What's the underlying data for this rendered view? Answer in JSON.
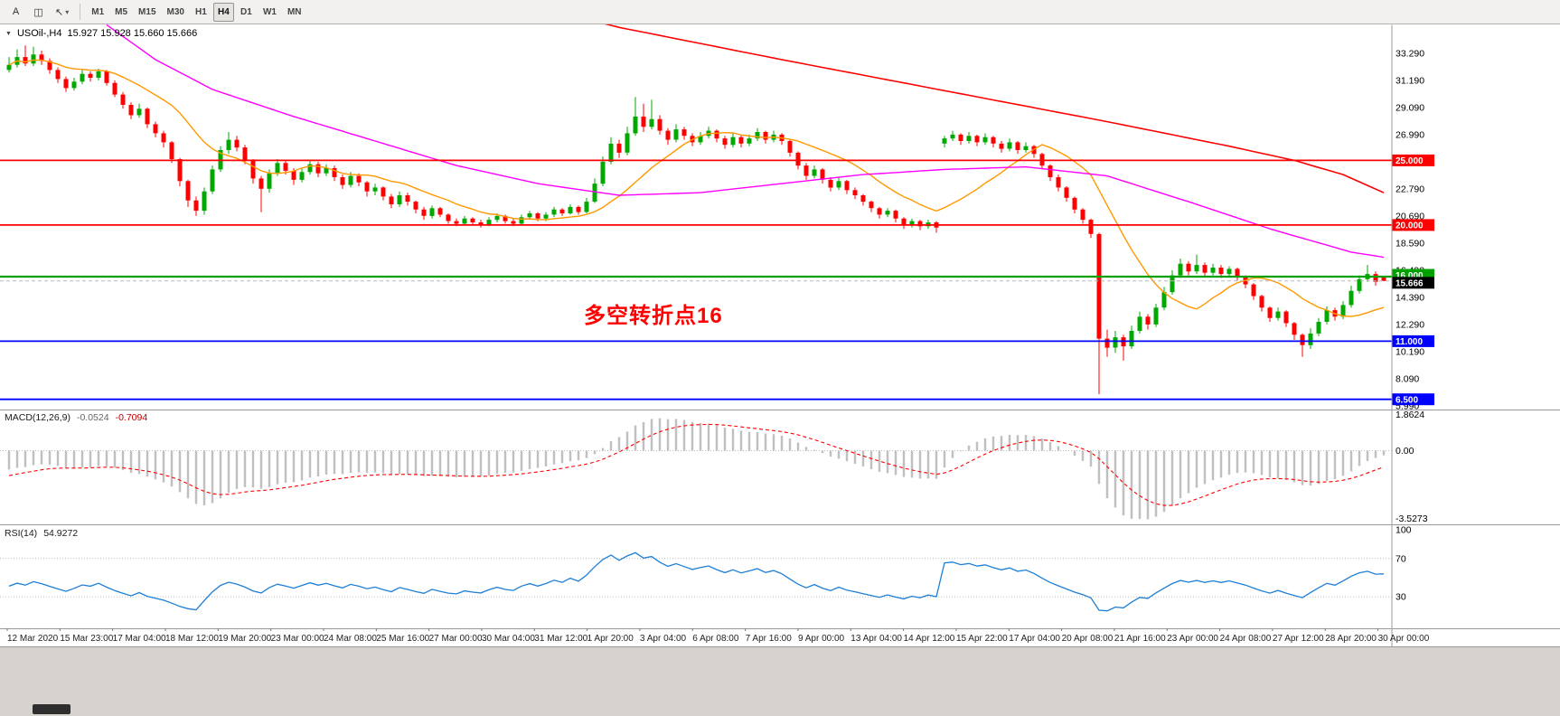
{
  "toolbar": {
    "buttons": [
      {
        "name": "annotations-button",
        "label": "A"
      },
      {
        "name": "chart-window-button",
        "label": "◫"
      },
      {
        "name": "cursor-tool-button",
        "label": "↖",
        "dropdown": "▾"
      }
    ],
    "timeframes": [
      "M1",
      "M5",
      "M15",
      "M30",
      "H1",
      "H4",
      "D1",
      "W1",
      "MN"
    ],
    "active_timeframe": "H4"
  },
  "chart": {
    "symbol_title": "USOil-,H4",
    "ohlc_line": "15.927 15.928 15.660 15.666",
    "annotation": {
      "text": "多空转折点16",
      "color": "#FF0000"
    },
    "current_price": "15.666"
  },
  "price_axis": {
    "labels": [
      "33.290",
      "31.190",
      "29.090",
      "26.990",
      "22.790",
      "20.690",
      "18.590",
      "16.490",
      "14.390",
      "12.290",
      "10.190",
      "8.090",
      "5.990"
    ],
    "flags": [
      {
        "label": "25.000",
        "price": 25.0,
        "color": "#FF0000",
        "line": true,
        "width": 1.8
      },
      {
        "label": "20.000",
        "price": 20.0,
        "color": "#FF0000",
        "line": true,
        "width": 1.8
      },
      {
        "label": "16.000",
        "price": 16.0,
        "color": "#00A000",
        "line": true,
        "width": 2.2,
        "dy": -2
      },
      {
        "label": "15.666",
        "price": 15.666,
        "color": "#000000",
        "line": false,
        "dashed": true,
        "dy": 2
      },
      {
        "label": "11.000",
        "price": 11.0,
        "color": "#0000FF",
        "line": true,
        "width": 1.8
      },
      {
        "label": "6.500",
        "price": 6.5,
        "color": "#0000FF",
        "line": true,
        "width": 1.8
      }
    ]
  },
  "time_axis": {
    "labels": [
      "12 Mar 2020",
      "15 Mar 23:00",
      "17 Mar 04:00",
      "18 Mar 12:00",
      "19 Mar 20:00",
      "23 Mar 00:00",
      "24 Mar 08:00",
      "25 Mar 16:00",
      "27 Mar 00:00",
      "30 Mar 04:00",
      "31 Mar 12:00",
      "1 Apr 20:00",
      "3 Apr 04:00",
      "6 Apr 08:00",
      "7 Apr 16:00",
      "9 Apr 00:00",
      "13 Apr 04:00",
      "14 Apr 12:00",
      "15 Apr 22:00",
      "17 Apr 04:00",
      "20 Apr 08:00",
      "21 Apr 16:00",
      "23 Apr 00:00",
      "24 Apr 08:00",
      "27 Apr 12:00",
      "28 Apr 20:00",
      "30 Apr 00:00"
    ]
  },
  "indicators": {
    "macd": {
      "title": "MACD(12,26,9)",
      "value_main": "-0.0524",
      "value_signal": "-0.7094",
      "scale": [
        "1.8624",
        "0.00",
        "-3.5273"
      ],
      "fast": 12,
      "slow": 26,
      "signal": 9,
      "histogram_color": "#C0C0C0",
      "signal_color": "#FF0000"
    },
    "rsi": {
      "title": "RSI(14)",
      "value": "54.9272",
      "scale": [
        "100",
        "70",
        "30"
      ],
      "levels": [
        70,
        30
      ],
      "period": 14,
      "line_color": "#1E7FD6"
    }
  },
  "chart_data": {
    "type": "candlestick",
    "symbol": "USOil-",
    "timeframe": "H4",
    "title": "USOil-,H4 15.927 15.928 15.660 15.666",
    "y_range": [
      5.99,
      35.32
    ],
    "bull_color": "#00A800",
    "bear_color": "#FF0000",
    "horizontal_lines": [
      25.0,
      20.0,
      16.0,
      11.0,
      6.5
    ],
    "candles": [
      [
        32.0,
        33.0,
        31.8,
        32.4
      ],
      [
        32.4,
        33.6,
        32.2,
        33.0
      ],
      [
        33.0,
        33.9,
        32.3,
        32.5
      ],
      [
        32.5,
        33.8,
        32.3,
        33.2
      ],
      [
        33.2,
        33.5,
        32.4,
        32.7
      ],
      [
        32.7,
        32.9,
        31.7,
        32.0
      ],
      [
        32.0,
        32.2,
        31.0,
        31.3
      ],
      [
        31.3,
        31.5,
        30.3,
        30.6
      ],
      [
        30.6,
        31.4,
        30.4,
        31.1
      ],
      [
        31.1,
        32.0,
        30.9,
        31.7
      ],
      [
        31.7,
        31.9,
        31.1,
        31.4
      ],
      [
        31.4,
        32.1,
        31.2,
        31.9
      ],
      [
        31.9,
        32.0,
        30.8,
        31.0
      ],
      [
        31.0,
        31.2,
        29.9,
        30.1
      ],
      [
        30.1,
        30.3,
        29.0,
        29.3
      ],
      [
        29.3,
        29.5,
        28.2,
        28.5
      ],
      [
        28.5,
        29.4,
        28.3,
        29.0
      ],
      [
        29.0,
        29.1,
        27.5,
        27.8
      ],
      [
        27.8,
        28.0,
        26.8,
        27.1
      ],
      [
        27.1,
        27.3,
        26.0,
        26.4
      ],
      [
        26.4,
        26.5,
        24.8,
        25.1
      ],
      [
        25.1,
        25.2,
        23.0,
        23.4
      ],
      [
        23.4,
        23.5,
        21.4,
        21.9
      ],
      [
        21.9,
        22.2,
        20.7,
        21.1
      ],
      [
        21.1,
        22.9,
        20.8,
        22.6
      ],
      [
        22.6,
        24.6,
        22.4,
        24.3
      ],
      [
        24.3,
        26.1,
        24.1,
        25.8
      ],
      [
        25.8,
        27.2,
        25.5,
        26.6
      ],
      [
        26.6,
        26.9,
        25.7,
        26.0
      ],
      [
        26.0,
        26.2,
        24.7,
        25.0
      ],
      [
        25.0,
        25.1,
        23.2,
        23.6
      ],
      [
        23.6,
        23.8,
        21.0,
        22.8
      ],
      [
        22.8,
        24.3,
        22.5,
        24.0
      ],
      [
        24.0,
        25.1,
        23.8,
        24.8
      ],
      [
        24.8,
        25.0,
        23.9,
        24.2
      ],
      [
        24.2,
        24.4,
        23.1,
        23.5
      ],
      [
        23.5,
        24.4,
        23.3,
        24.1
      ],
      [
        24.1,
        25.0,
        23.9,
        24.7
      ],
      [
        24.7,
        24.9,
        23.7,
        24.0
      ],
      [
        24.0,
        24.7,
        23.8,
        24.4
      ],
      [
        24.4,
        24.6,
        23.4,
        23.7
      ],
      [
        23.7,
        23.9,
        22.8,
        23.1
      ],
      [
        23.1,
        24.1,
        22.9,
        23.8
      ],
      [
        23.8,
        24.0,
        23.0,
        23.3
      ],
      [
        23.3,
        23.4,
        22.2,
        22.6
      ],
      [
        22.6,
        23.2,
        22.3,
        22.9
      ],
      [
        22.9,
        23.0,
        21.9,
        22.2
      ],
      [
        22.2,
        22.4,
        21.3,
        21.6
      ],
      [
        21.6,
        22.6,
        21.4,
        22.3
      ],
      [
        22.3,
        22.5,
        21.5,
        21.8
      ],
      [
        21.8,
        21.9,
        20.9,
        21.2
      ],
      [
        21.2,
        21.4,
        20.4,
        20.7
      ],
      [
        20.7,
        21.5,
        20.5,
        21.3
      ],
      [
        21.3,
        21.4,
        20.6,
        20.8
      ],
      [
        20.8,
        20.9,
        20.1,
        20.3
      ],
      [
        20.3,
        20.5,
        19.9,
        20.1
      ],
      [
        20.1,
        20.7,
        20.0,
        20.5
      ],
      [
        20.5,
        20.6,
        20.0,
        20.2
      ],
      [
        20.2,
        20.4,
        19.8,
        20.0
      ],
      [
        20.0,
        20.6,
        19.9,
        20.4
      ],
      [
        20.4,
        20.9,
        20.2,
        20.7
      ],
      [
        20.7,
        20.8,
        20.1,
        20.3
      ],
      [
        20.3,
        20.5,
        19.9,
        20.1
      ],
      [
        20.1,
        20.8,
        20.0,
        20.6
      ],
      [
        20.6,
        21.1,
        20.4,
        20.9
      ],
      [
        20.9,
        21.0,
        20.3,
        20.5
      ],
      [
        20.5,
        21.0,
        20.3,
        20.8
      ],
      [
        20.8,
        21.4,
        20.6,
        21.2
      ],
      [
        21.2,
        21.3,
        20.7,
        20.9
      ],
      [
        20.9,
        21.6,
        20.8,
        21.4
      ],
      [
        21.4,
        21.5,
        20.8,
        21.0
      ],
      [
        21.0,
        22.1,
        20.9,
        21.8
      ],
      [
        21.8,
        23.6,
        21.7,
        23.2
      ],
      [
        23.2,
        25.3,
        23.0,
        24.9
      ],
      [
        24.9,
        26.8,
        24.7,
        26.3
      ],
      [
        26.3,
        26.6,
        25.2,
        25.6
      ],
      [
        25.6,
        27.6,
        25.4,
        27.1
      ],
      [
        27.1,
        29.9,
        26.9,
        28.4
      ],
      [
        28.4,
        29.4,
        27.2,
        27.6
      ],
      [
        27.6,
        29.7,
        27.4,
        28.2
      ],
      [
        28.2,
        28.5,
        27.0,
        27.3
      ],
      [
        27.3,
        27.5,
        26.2,
        26.6
      ],
      [
        26.6,
        27.8,
        26.4,
        27.4
      ],
      [
        27.4,
        27.6,
        26.6,
        26.9
      ],
      [
        26.9,
        27.1,
        26.1,
        26.4
      ],
      [
        26.4,
        27.2,
        26.2,
        26.9
      ],
      [
        26.9,
        27.6,
        26.7,
        27.3
      ],
      [
        27.3,
        27.4,
        26.4,
        26.7
      ],
      [
        26.7,
        26.9,
        25.9,
        26.2
      ],
      [
        26.2,
        27.1,
        26.0,
        26.8
      ],
      [
        26.8,
        27.0,
        26.0,
        26.3
      ],
      [
        26.3,
        27.0,
        26.1,
        26.7
      ],
      [
        26.7,
        27.5,
        26.5,
        27.2
      ],
      [
        27.2,
        27.3,
        26.3,
        26.6
      ],
      [
        26.6,
        27.3,
        26.4,
        27.0
      ],
      [
        27.0,
        27.1,
        26.2,
        26.5
      ],
      [
        26.5,
        26.6,
        25.3,
        25.6
      ],
      [
        25.6,
        25.7,
        24.3,
        24.6
      ],
      [
        24.6,
        24.8,
        23.5,
        23.8
      ],
      [
        23.8,
        24.6,
        23.6,
        24.3
      ],
      [
        24.3,
        24.4,
        23.2,
        23.5
      ],
      [
        23.5,
        23.7,
        22.6,
        22.9
      ],
      [
        22.9,
        23.7,
        22.7,
        23.4
      ],
      [
        23.4,
        23.5,
        22.4,
        22.7
      ],
      [
        22.7,
        22.9,
        22.0,
        22.3
      ],
      [
        22.3,
        22.4,
        21.5,
        21.8
      ],
      [
        21.8,
        21.9,
        21.0,
        21.3
      ],
      [
        21.3,
        21.4,
        20.5,
        20.8
      ],
      [
        20.8,
        21.3,
        20.6,
        21.1
      ],
      [
        21.1,
        21.2,
        20.2,
        20.5
      ],
      [
        20.5,
        20.6,
        19.7,
        20.0
      ],
      [
        20.0,
        20.5,
        19.8,
        20.3
      ],
      [
        20.3,
        20.4,
        19.6,
        19.9
      ],
      [
        19.9,
        20.4,
        19.7,
        20.2
      ],
      [
        20.2,
        20.3,
        19.4,
        19.8
      ],
      [
        26.3,
        26.9,
        26.0,
        26.7
      ],
      [
        26.7,
        27.3,
        26.5,
        27.0
      ],
      [
        27.0,
        27.1,
        26.2,
        26.5
      ],
      [
        26.5,
        27.2,
        26.3,
        26.9
      ],
      [
        26.9,
        27.0,
        26.1,
        26.4
      ],
      [
        26.4,
        27.1,
        26.2,
        26.8
      ],
      [
        26.8,
        26.9,
        26.0,
        26.3
      ],
      [
        26.3,
        26.5,
        25.6,
        25.9
      ],
      [
        25.9,
        26.7,
        25.7,
        26.4
      ],
      [
        26.4,
        26.5,
        25.5,
        25.8
      ],
      [
        25.8,
        26.4,
        25.6,
        26.1
      ],
      [
        26.1,
        26.2,
        25.2,
        25.5
      ],
      [
        25.5,
        25.6,
        24.3,
        24.6
      ],
      [
        24.6,
        24.7,
        23.4,
        23.7
      ],
      [
        23.7,
        23.9,
        22.6,
        22.9
      ],
      [
        22.9,
        23.0,
        21.8,
        22.1
      ],
      [
        22.1,
        22.2,
        20.9,
        21.2
      ],
      [
        21.2,
        21.3,
        20.1,
        20.4
      ],
      [
        20.4,
        20.5,
        19.0,
        19.3
      ],
      [
        19.3,
        19.4,
        6.9,
        11.2
      ],
      [
        11.2,
        11.9,
        9.8,
        10.5
      ],
      [
        10.5,
        11.8,
        10.1,
        11.3
      ],
      [
        11.3,
        11.5,
        9.5,
        10.6
      ],
      [
        10.6,
        12.2,
        10.4,
        11.8
      ],
      [
        11.8,
        13.3,
        11.6,
        12.9
      ],
      [
        12.9,
        13.1,
        11.9,
        12.3
      ],
      [
        12.3,
        13.9,
        12.1,
        13.6
      ],
      [
        13.6,
        15.2,
        13.4,
        14.8
      ],
      [
        14.8,
        16.5,
        14.6,
        16.1
      ],
      [
        16.1,
        17.4,
        15.9,
        17.0
      ],
      [
        17.0,
        17.2,
        16.1,
        16.4
      ],
      [
        16.4,
        17.7,
        16.2,
        16.9
      ],
      [
        16.9,
        17.1,
        16.0,
        16.3
      ],
      [
        16.3,
        17.0,
        16.1,
        16.7
      ],
      [
        16.7,
        16.9,
        15.9,
        16.2
      ],
      [
        16.2,
        16.8,
        16.0,
        16.6
      ],
      [
        16.6,
        16.7,
        15.7,
        16.0
      ],
      [
        16.0,
        16.1,
        15.1,
        15.4
      ],
      [
        15.4,
        15.5,
        14.2,
        14.5
      ],
      [
        14.5,
        14.6,
        13.3,
        13.6
      ],
      [
        13.6,
        13.7,
        12.5,
        12.8
      ],
      [
        12.8,
        13.6,
        12.6,
        13.3
      ],
      [
        13.3,
        13.4,
        12.1,
        12.4
      ],
      [
        12.4,
        12.5,
        11.1,
        11.5
      ],
      [
        11.5,
        11.6,
        9.8,
        10.7
      ],
      [
        10.7,
        12.0,
        10.4,
        11.6
      ],
      [
        11.6,
        12.8,
        11.4,
        12.5
      ],
      [
        12.5,
        13.7,
        12.3,
        13.4
      ],
      [
        13.4,
        13.6,
        12.6,
        12.9
      ],
      [
        12.9,
        14.1,
        12.7,
        13.8
      ],
      [
        13.8,
        15.3,
        13.6,
        14.9
      ],
      [
        14.9,
        16.1,
        14.7,
        15.8
      ],
      [
        15.8,
        16.9,
        15.6,
        16.2
      ],
      [
        16.2,
        16.4,
        15.3,
        15.6
      ],
      [
        15.93,
        15.93,
        15.66,
        15.67
      ]
    ],
    "overlays": {
      "orange_ma": {
        "type": "sma",
        "period": 13,
        "color": "#FF9900"
      },
      "magenta_ma": {
        "type": "anchored",
        "color": "#FF00FF",
        "anchors": [
          [
            12,
            35.5
          ],
          [
            18,
            32.8
          ],
          [
            25,
            30.5
          ],
          [
            35,
            28.4
          ],
          [
            45,
            26.5
          ],
          [
            55,
            24.6
          ],
          [
            65,
            23.2
          ],
          [
            75,
            22.3
          ],
          [
            85,
            22.5
          ],
          [
            95,
            23.2
          ],
          [
            105,
            23.9
          ],
          [
            115,
            24.3
          ],
          [
            125,
            24.5
          ],
          [
            135,
            23.8
          ],
          [
            145,
            21.8
          ],
          [
            155,
            19.7
          ],
          [
            165,
            17.9
          ],
          [
            169,
            17.5
          ]
        ]
      },
      "red_trend": {
        "type": "anchored",
        "color": "#FF0000",
        "anchors": [
          [
            55,
            38.5
          ],
          [
            75,
            35.3
          ],
          [
            95,
            32.8
          ],
          [
            115,
            30.4
          ],
          [
            135,
            28.0
          ],
          [
            150,
            26.1
          ],
          [
            158,
            25.0
          ],
          [
            164,
            23.9
          ],
          [
            169,
            22.5
          ]
        ]
      }
    }
  }
}
